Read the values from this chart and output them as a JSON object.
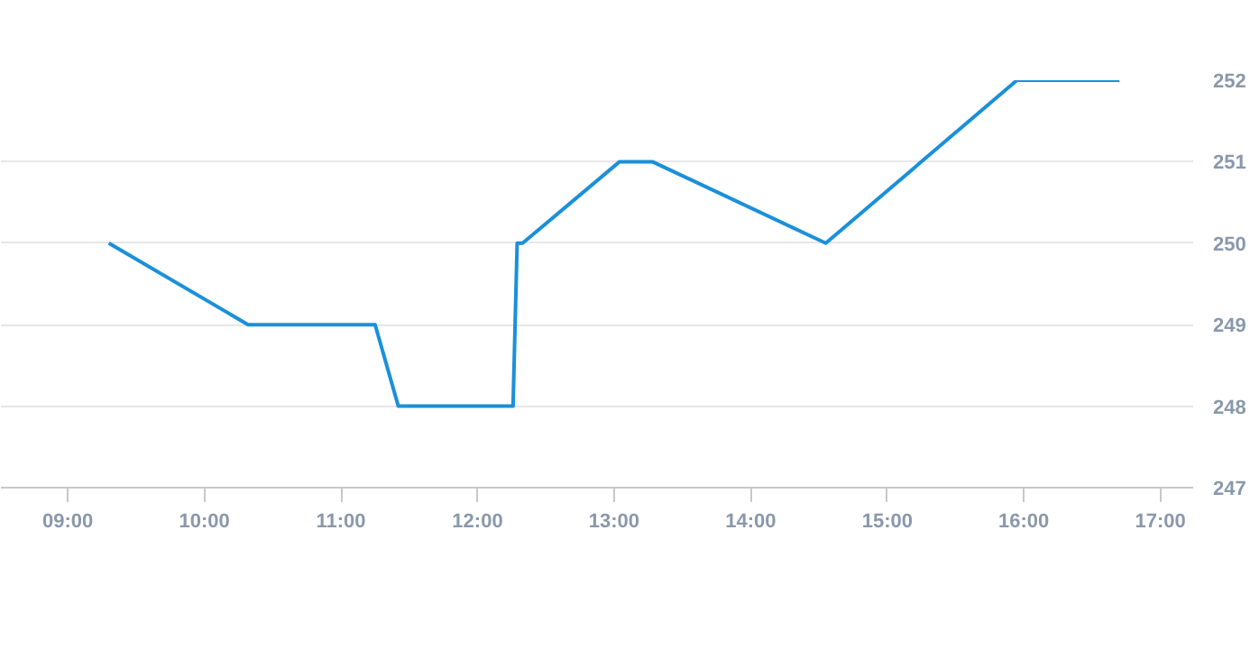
{
  "chart_data": {
    "type": "line",
    "x": [
      9.3,
      10.32,
      11.25,
      11.42,
      12.26,
      12.29,
      12.33,
      13.04,
      13.28,
      14.55,
      15.95,
      16.7
    ],
    "series": [
      {
        "color": "#1a90d9",
        "values": [
          250,
          249,
          249,
          248,
          248,
          250,
          250,
          251,
          251,
          250,
          252,
          252
        ]
      }
    ],
    "xlim": [
      8.51,
      17.24
    ],
    "ylim": [
      247,
      252
    ],
    "xticks": [
      {
        "value": 9,
        "label": "09:00"
      },
      {
        "value": 10,
        "label": "10:00"
      },
      {
        "value": 11,
        "label": "11:00"
      },
      {
        "value": 12,
        "label": "12:00"
      },
      {
        "value": 13,
        "label": "13:00"
      },
      {
        "value": 14,
        "label": "14:00"
      },
      {
        "value": 15,
        "label": "15:00"
      },
      {
        "value": 16,
        "label": "16:00"
      },
      {
        "value": 17,
        "label": "17:00"
      }
    ],
    "yticks": [
      247,
      248,
      249,
      250,
      251,
      252
    ],
    "grid": "y",
    "marker": "none",
    "line_style": "solid"
  }
}
